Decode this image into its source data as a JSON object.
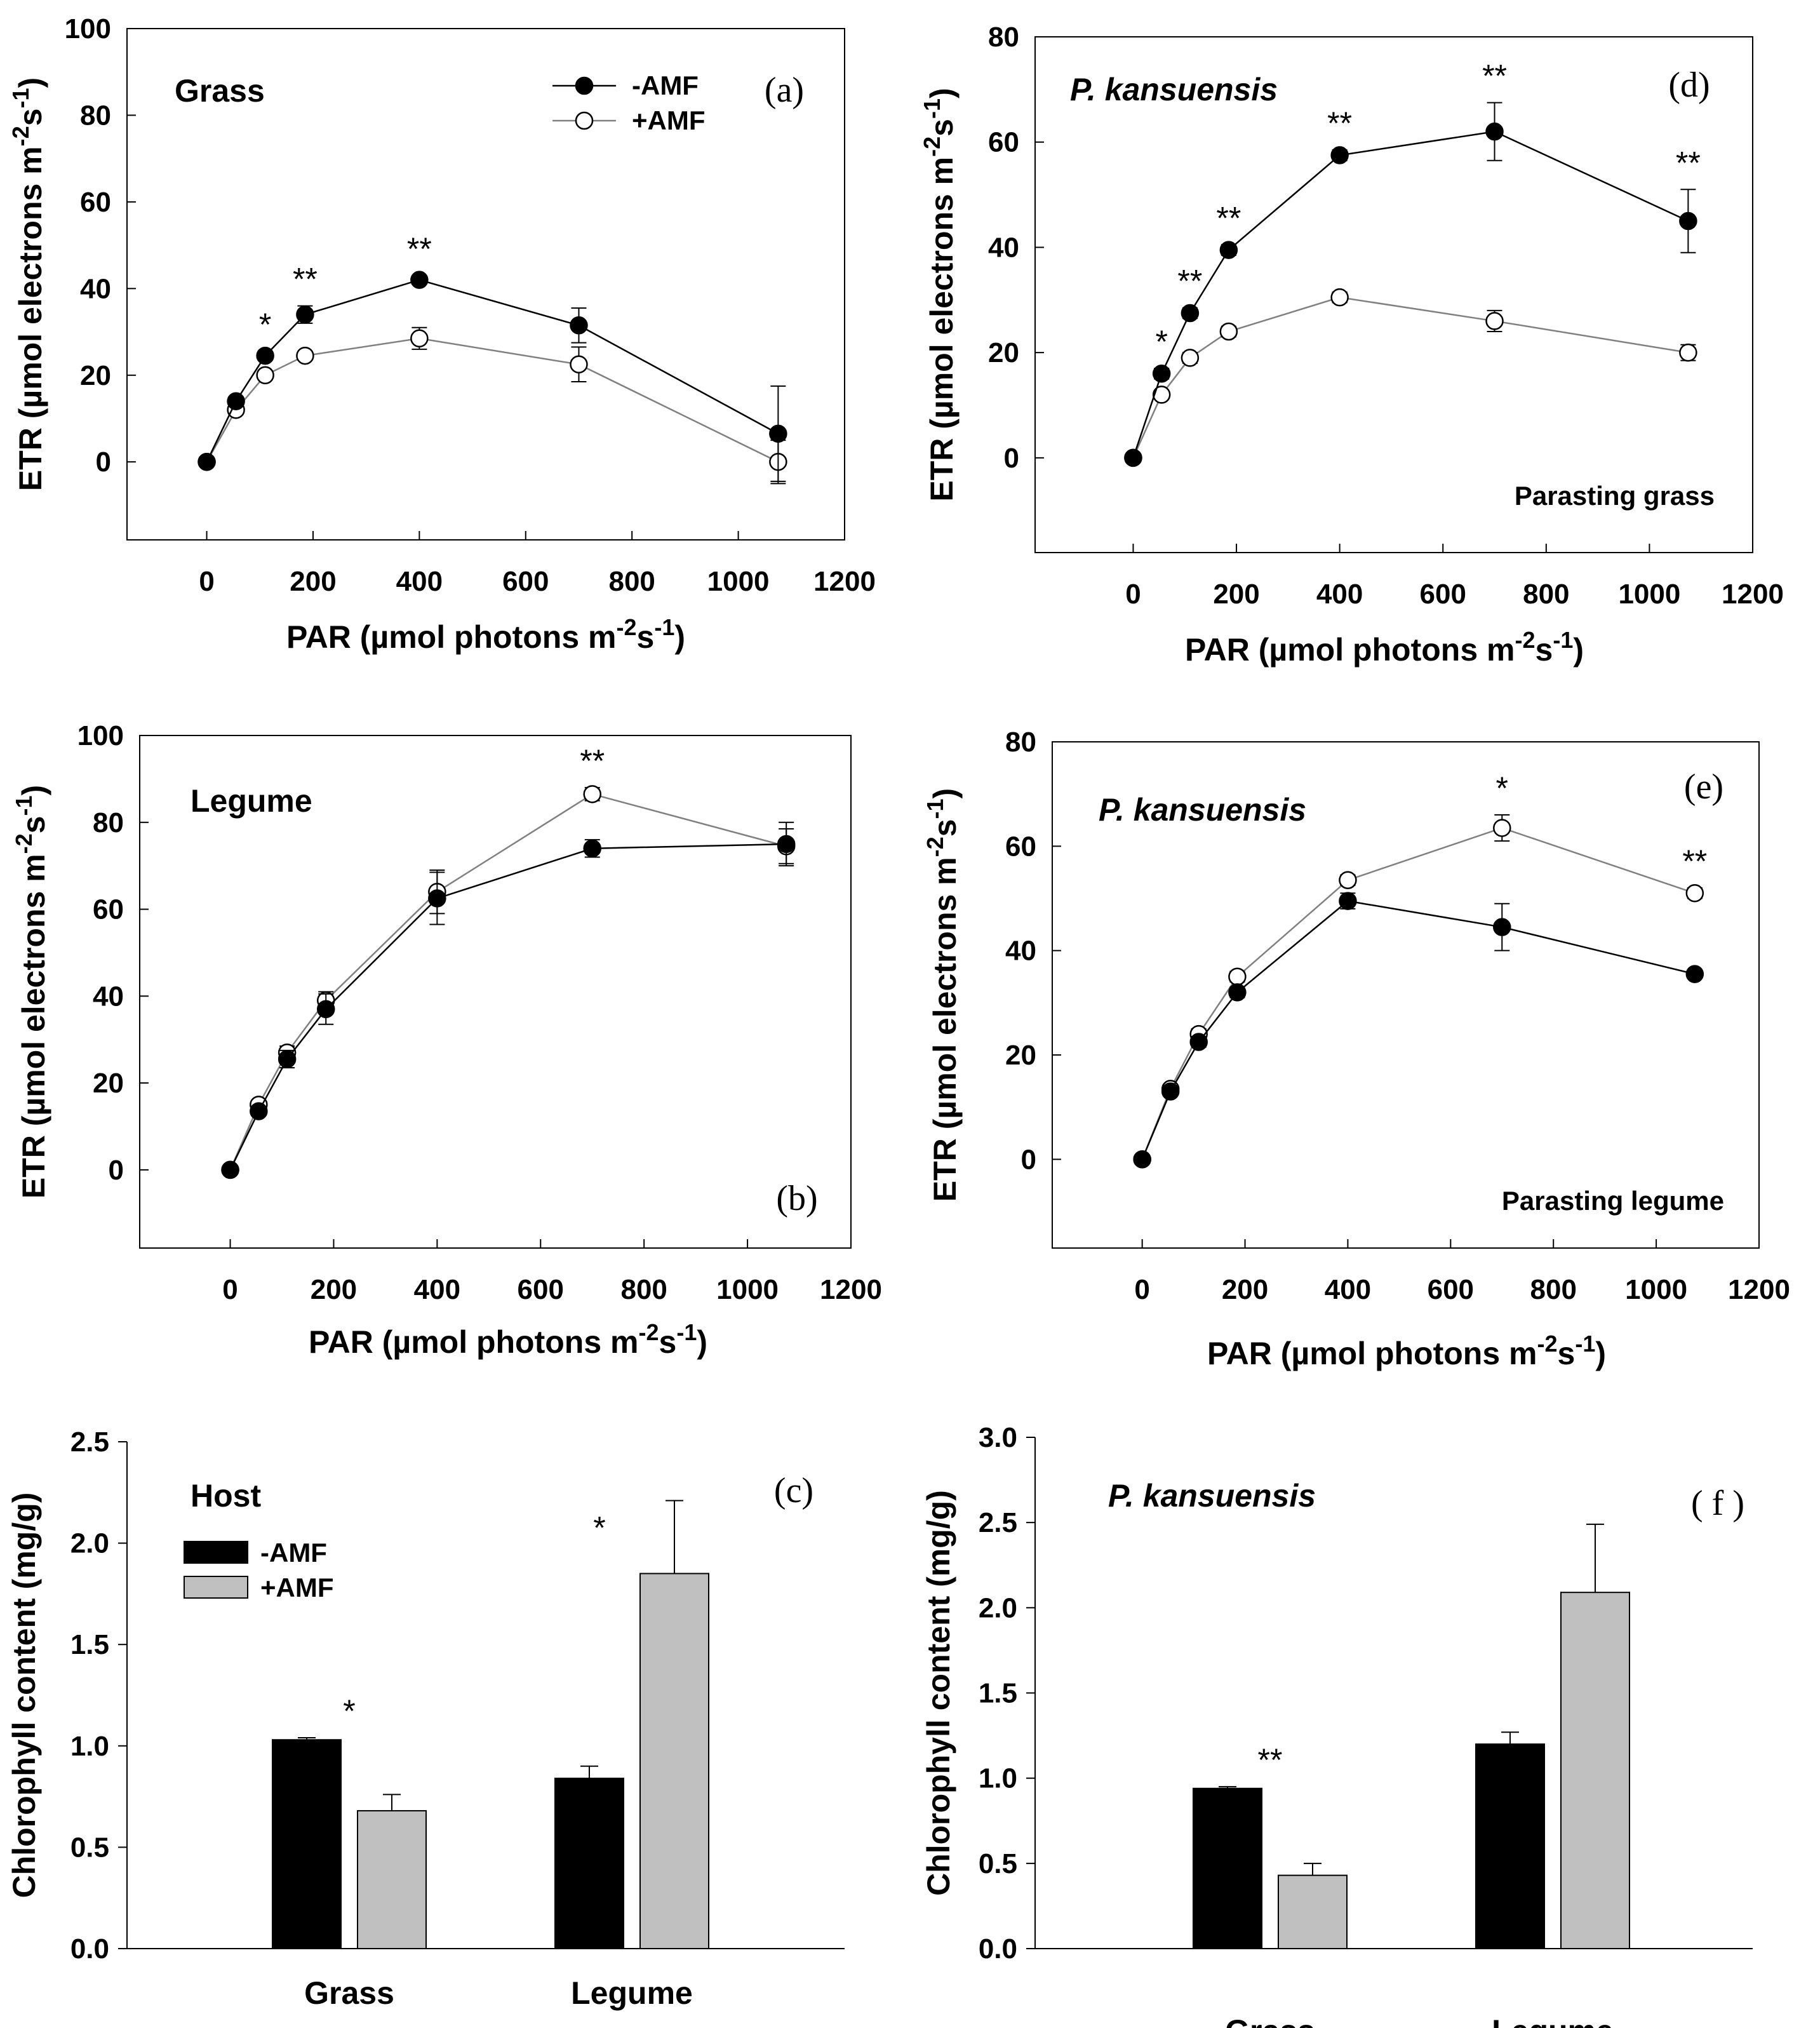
{
  "chart_data": [
    {
      "id": "a",
      "type": "line",
      "panel_label": "(a)",
      "panel_title": "Grass",
      "title_italic": false,
      "note": "",
      "xlabel": "PAR (µmol photons m-2s-1)",
      "ylabel": "ETR (µmol electrons m-2s-1)",
      "xlim": [
        -150,
        1200
      ],
      "ylim": [
        -18,
        100
      ],
      "xticks": [
        0,
        200,
        400,
        600,
        800,
        1000,
        1200
      ],
      "yticks": [
        0,
        20,
        40,
        60,
        80,
        100
      ],
      "legend": [
        "-AMF",
        "+AMF"
      ],
      "legend_position": "top-right",
      "series": [
        {
          "name": "-AMF",
          "x": [
            0,
            55,
            110,
            185,
            400,
            700,
            1075
          ],
          "y": [
            0,
            14,
            24.5,
            34,
            42,
            31.5,
            6.5
          ],
          "err": [
            0.5,
            0.8,
            1,
            2,
            1,
            4,
            11
          ]
        },
        {
          "name": "+AMF",
          "x": [
            0,
            55,
            110,
            185,
            400,
            700,
            1075
          ],
          "y": [
            0,
            12,
            20,
            24.5,
            28.5,
            22.5,
            0
          ],
          "err": [
            0.5,
            0.8,
            1,
            1,
            2.5,
            4,
            5
          ]
        }
      ],
      "annotations": [
        {
          "x": 110,
          "text": "*"
        },
        {
          "x": 185,
          "text": "**"
        },
        {
          "x": 400,
          "text": "**"
        }
      ]
    },
    {
      "id": "b",
      "type": "line",
      "panel_label": "(b)",
      "panel_title": "Legume",
      "title_italic": false,
      "note": "",
      "xlabel": "PAR (µmol photons m-2s-1)",
      "ylabel": "ETR (µmol electrons m-2s-1)",
      "xlim": [
        -175,
        1200
      ],
      "ylim": [
        -18,
        100
      ],
      "xticks": [
        0,
        200,
        400,
        600,
        800,
        1000,
        1200
      ],
      "yticks": [
        0,
        20,
        40,
        60,
        80,
        100
      ],
      "legend": [],
      "legend_position": "",
      "series": [
        {
          "name": "-AMF",
          "x": [
            0,
            55,
            110,
            185,
            400,
            700,
            1075
          ],
          "y": [
            0,
            13.5,
            25.5,
            37,
            62.5,
            74,
            75
          ],
          "err": [
            0.5,
            1,
            2,
            3.5,
            6,
            2,
            5
          ]
        },
        {
          "name": "+AMF",
          "x": [
            0,
            55,
            110,
            185,
            400,
            700,
            1075
          ],
          "y": [
            0,
            15,
            27,
            39,
            64,
            86.5,
            74.5
          ],
          "err": [
            0.5,
            1,
            1.5,
            2,
            5,
            1.5,
            4
          ]
        }
      ],
      "annotations": [
        {
          "x": 700,
          "text": "**"
        }
      ]
    },
    {
      "id": "c",
      "type": "bar",
      "panel_label": "(c)",
      "panel_title": "Host",
      "title_italic": false,
      "note": "",
      "xlabel": "",
      "ylabel": "Chlorophyll content (mg/g)",
      "ylim": [
        0,
        2.5
      ],
      "yticks": [
        "0.0",
        "0.5",
        "1.0",
        "1.5",
        "2.0",
        "2.5"
      ],
      "categories": [
        "Grass",
        "Legume"
      ],
      "legend": [
        "-AMF",
        "+AMF"
      ],
      "legend_position": "top-left",
      "series": [
        {
          "name": "-AMF",
          "values": [
            1.03,
            0.84
          ],
          "err": [
            0.01,
            0.06
          ]
        },
        {
          "name": "+AMF",
          "values": [
            0.68,
            1.85
          ],
          "err": [
            0.08,
            0.36
          ]
        }
      ],
      "annotations": [
        {
          "category": 0,
          "text": "*"
        },
        {
          "category": 1,
          "text": "*"
        }
      ]
    },
    {
      "id": "d",
      "type": "line",
      "panel_label": "(d)",
      "panel_title": "P. kansuensis",
      "title_italic": true,
      "note": "Parasting grass",
      "xlabel": "PAR (µmol photons m-2s-1)",
      "ylabel": "ETR (µmol electrons m-2s-1)",
      "xlim": [
        -190,
        1200
      ],
      "ylim": [
        -18,
        80
      ],
      "xticks": [
        0,
        200,
        400,
        600,
        800,
        1000,
        1200
      ],
      "yticks": [
        0,
        20,
        40,
        60,
        80
      ],
      "legend": [],
      "legend_position": "",
      "series": [
        {
          "name": "-AMF",
          "x": [
            0,
            55,
            110,
            185,
            400,
            700,
            1075
          ],
          "y": [
            0,
            16,
            27.5,
            39.5,
            57.5,
            62,
            45
          ],
          "err": [
            0.5,
            1,
            1,
            1,
            1,
            5.5,
            6
          ]
        },
        {
          "name": "+AMF",
          "x": [
            0,
            55,
            110,
            185,
            400,
            700,
            1075
          ],
          "y": [
            0,
            12,
            19,
            24,
            30.5,
            26,
            20
          ],
          "err": [
            0.5,
            0.8,
            1,
            1,
            1,
            2,
            1.5
          ]
        }
      ],
      "annotations": [
        {
          "x": 55,
          "text": "*"
        },
        {
          "x": 110,
          "text": "**"
        },
        {
          "x": 185,
          "text": "**"
        },
        {
          "x": 400,
          "text": "**"
        },
        {
          "x": 700,
          "text": "**"
        },
        {
          "x": 1075,
          "text": "**"
        }
      ]
    },
    {
      "id": "e",
      "type": "line",
      "panel_label": "(e)",
      "panel_title": "P. kansuensis",
      "title_italic": true,
      "note": "Parasting legume",
      "xlabel": "PAR (µmol photons m-2s-1)",
      "ylabel": "ETR (µmol electrons m-2s-1)",
      "xlim": [
        -175,
        1200
      ],
      "ylim": [
        -17,
        80
      ],
      "xticks": [
        0,
        200,
        400,
        600,
        800,
        1000,
        1200
      ],
      "yticks": [
        0,
        20,
        40,
        60,
        80
      ],
      "legend": [],
      "legend_position": "",
      "series": [
        {
          "name": "-AMF",
          "x": [
            0,
            55,
            110,
            185,
            400,
            700,
            1075
          ],
          "y": [
            0,
            13,
            22.5,
            32,
            49.5,
            44.5,
            35.5
          ],
          "err": [
            0.5,
            0.8,
            1,
            1,
            1.5,
            4.5,
            0.5
          ]
        },
        {
          "name": "+AMF",
          "x": [
            0,
            55,
            110,
            185,
            400,
            700,
            1075
          ],
          "y": [
            0,
            13.5,
            24,
            35,
            53.5,
            63.5,
            51
          ],
          "err": [
            0.5,
            0.8,
            1,
            1,
            1,
            2.5,
            1
          ]
        }
      ],
      "annotations": [
        {
          "x": 700,
          "text": "*"
        },
        {
          "x": 1075,
          "text": "**"
        }
      ]
    },
    {
      "id": "f",
      "type": "bar",
      "panel_label": "( f )",
      "panel_title": "P. kansuensis",
      "title_italic": true,
      "note": "",
      "xlabel": "",
      "ylabel": "Chlorophyll content (mg/g)",
      "ylim": [
        0,
        3.0
      ],
      "yticks": [
        "0.0",
        "0.5",
        "1.0",
        "1.5",
        "2.0",
        "2.5",
        "3.0"
      ],
      "categories": [
        "Grass",
        "Legume"
      ],
      "legend": [],
      "legend_position": "",
      "series": [
        {
          "name": "-AMF",
          "values": [
            0.94,
            1.2
          ],
          "err": [
            0.01,
            0.07
          ]
        },
        {
          "name": "+AMF",
          "values": [
            0.43,
            2.09
          ],
          "err": [
            0.07,
            0.4
          ]
        }
      ],
      "annotations": [
        {
          "category": 0,
          "text": "**"
        }
      ]
    }
  ],
  "colors": {
    "minus_amf": "#000000",
    "plus_amf_marker": "#ffffff",
    "plus_amf_line": "#808080",
    "plus_amf_bar": "#c0c0c0"
  }
}
